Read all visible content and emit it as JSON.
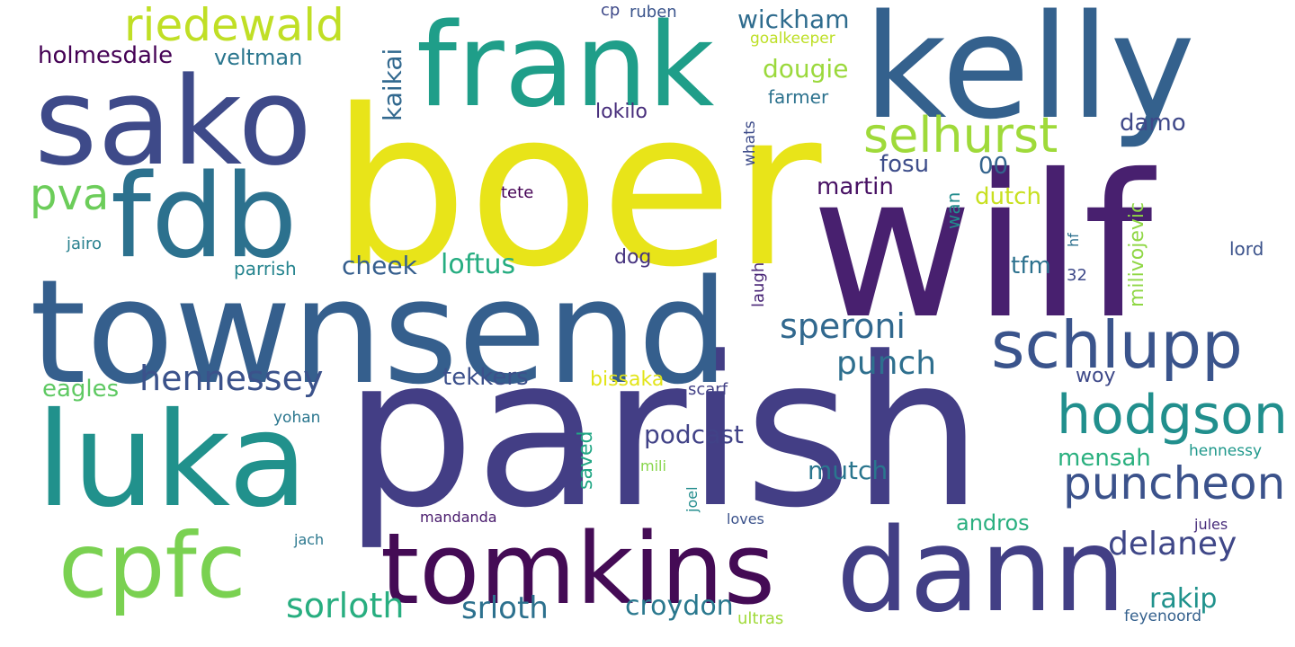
{
  "words": [
    {
      "text": "boer",
      "color": "#e8e419"
    },
    {
      "text": "wilf",
      "color": "#48206f"
    },
    {
      "text": "parish",
      "color": "#433e85"
    },
    {
      "text": "townsend",
      "color": "#355f8d"
    },
    {
      "text": "kelly",
      "color": "#34618d"
    },
    {
      "text": "frank",
      "color": "#1f9e89"
    },
    {
      "text": "sako",
      "color": "#3e4a89"
    },
    {
      "text": "fdb",
      "color": "#2c718e"
    },
    {
      "text": "luka",
      "color": "#21918c"
    },
    {
      "text": "tomkins",
      "color": "#440b55"
    },
    {
      "text": "dann",
      "color": "#423f85"
    },
    {
      "text": "cpfc",
      "color": "#7ad151"
    },
    {
      "text": "schlupp",
      "color": "#3a548c"
    },
    {
      "text": "hodgson",
      "color": "#218f8d"
    },
    {
      "text": "puncheon",
      "color": "#3b528b"
    },
    {
      "text": "selhurst",
      "color": "#9fda3a"
    },
    {
      "text": "riedewald",
      "color": "#c0df25"
    },
    {
      "text": "pva",
      "color": "#6ccd5a"
    },
    {
      "text": "wickham",
      "color": "#2f6c8e"
    },
    {
      "text": "dougie",
      "color": "#9bd93c"
    },
    {
      "text": "damo",
      "color": "#3f4889"
    },
    {
      "text": "fosu",
      "color": "#3d4d8a"
    },
    {
      "text": "00",
      "color": "#33638d"
    },
    {
      "text": "martin",
      "color": "#471063"
    },
    {
      "text": "dutch",
      "color": "#c8e020"
    },
    {
      "text": "speroni",
      "color": "#31688e"
    },
    {
      "text": "punch",
      "color": "#2e6f8e"
    },
    {
      "text": "hennessey",
      "color": "#3b528b"
    },
    {
      "text": "loftus",
      "color": "#26ad81"
    },
    {
      "text": "cheek",
      "color": "#355e8d"
    },
    {
      "text": "podcast",
      "color": "#414287"
    },
    {
      "text": "mutch",
      "color": "#2a768e"
    },
    {
      "text": "delaney",
      "color": "#3f4788"
    },
    {
      "text": "sorloth",
      "color": "#28ae80"
    },
    {
      "text": "srloth",
      "color": "#2d718e"
    },
    {
      "text": "croydon",
      "color": "#2a788e"
    },
    {
      "text": "rakip",
      "color": "#20928c"
    },
    {
      "text": "mensah",
      "color": "#2ab07f"
    },
    {
      "text": "andros",
      "color": "#29af7f"
    },
    {
      "text": "tekkers",
      "color": "#3c508b"
    },
    {
      "text": "bissaka",
      "color": "#e2e418"
    },
    {
      "text": "eagles",
      "color": "#5ec962"
    },
    {
      "text": "holmesdale",
      "color": "#440154"
    },
    {
      "text": "veltman",
      "color": "#2a768e"
    },
    {
      "text": "kaikai",
      "color": "#31688e"
    },
    {
      "text": "lokilo",
      "color": "#472d7b"
    },
    {
      "text": "farmer",
      "color": "#2c728e"
    },
    {
      "text": "goalkeeper",
      "color": "#bddf26"
    },
    {
      "text": "cp",
      "color": "#3e4989"
    },
    {
      "text": "ruben",
      "color": "#3a548c"
    },
    {
      "text": "whats",
      "color": "#3e4c8a"
    },
    {
      "text": "tete",
      "color": "#440154"
    },
    {
      "text": "wan",
      "color": "#228c8d"
    },
    {
      "text": "milivojevic",
      "color": "#8fd744"
    },
    {
      "text": "tfm",
      "color": "#2c718e"
    },
    {
      "text": "lord",
      "color": "#3b528b"
    },
    {
      "text": "32",
      "color": "#3e4989"
    },
    {
      "text": "hf",
      "color": "#2d708e"
    },
    {
      "text": "jairo",
      "color": "#27808e"
    },
    {
      "text": "parrish",
      "color": "#25848e"
    },
    {
      "text": "dog",
      "color": "#46337f"
    },
    {
      "text": "laugh",
      "color": "#482576"
    },
    {
      "text": "woy",
      "color": "#3e4989"
    },
    {
      "text": "scarf",
      "color": "#424086"
    },
    {
      "text": "saved",
      "color": "#22a785"
    },
    {
      "text": "yohan",
      "color": "#2a768e"
    },
    {
      "text": "mili",
      "color": "#86d549"
    },
    {
      "text": "joel",
      "color": "#228c8d"
    },
    {
      "text": "hennessy",
      "color": "#1f988b"
    },
    {
      "text": "mandanda",
      "color": "#481a6c"
    },
    {
      "text": "loves",
      "color": "#3b528b"
    },
    {
      "text": "jach",
      "color": "#2a778e"
    },
    {
      "text": "jules",
      "color": "#472c7a"
    },
    {
      "text": "ultras",
      "color": "#a0da39"
    },
    {
      "text": "feyenoord",
      "color": "#34608d"
    }
  ]
}
